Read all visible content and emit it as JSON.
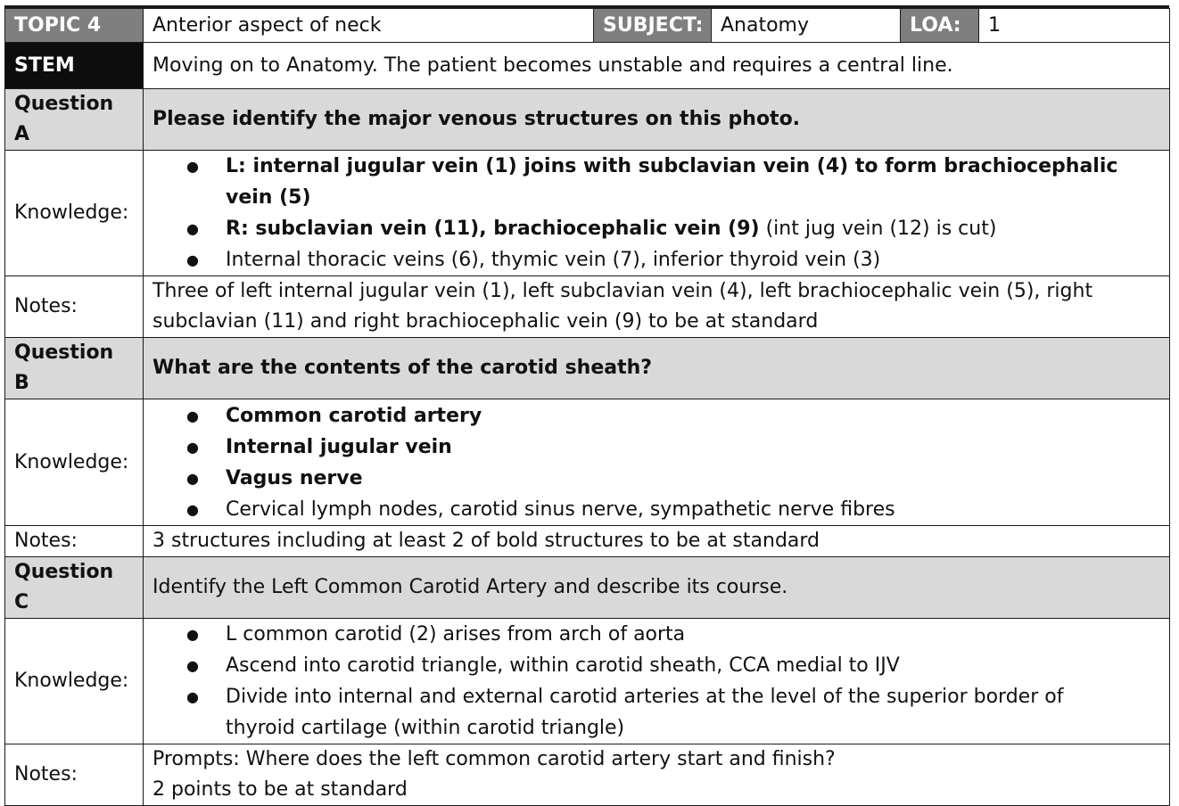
{
  "header": {
    "topic_label": "TOPIC 4",
    "topic_value": "Anterior aspect of neck",
    "subject_label": "SUBJECT:",
    "subject_value": "Anatomy",
    "loa_label": "LOA:",
    "loa_value": "1"
  },
  "stem": {
    "label": "STEM",
    "text": "Moving on to Anatomy. The patient becomes unstable and requires a central line."
  },
  "questions": [
    {
      "label": "Question A",
      "text": "Please identify the major venous structures on this photo.",
      "knowledge_label": "Knowledge:",
      "knowledge": [
        {
          "bold": "L: internal jugular vein (1) joins with subclavian vein (4) to form brachiocephalic vein (5)",
          "normal": ""
        },
        {
          "bold": "R: subclavian vein (11), brachiocephalic vein (9)",
          "normal": " (int jug vein (12) is cut)"
        },
        {
          "bold": "",
          "normal": "Internal thoracic veins (6), thymic vein (7), inferior thyroid vein (3)"
        }
      ],
      "notes_label": "Notes:",
      "notes": [
        "Three of left internal jugular vein (1), left subclavian vein (4), left brachiocephalic vein (5), right",
        "subclavian (11) and right brachiocephalic vein (9) to be at standard"
      ]
    },
    {
      "label": "Question B",
      "text": "What are the contents of the carotid sheath?",
      "knowledge_label": "Knowledge:",
      "knowledge": [
        {
          "bold": "Common carotid artery",
          "normal": ""
        },
        {
          "bold": "Internal jugular vein",
          "normal": ""
        },
        {
          "bold": "Vagus nerve",
          "normal": ""
        },
        {
          "bold": "",
          "normal": "Cervical lymph nodes, carotid sinus nerve, sympathetic nerve fibres"
        }
      ],
      "notes_label": "Notes:",
      "notes": [
        "3 structures including at least 2 of bold structures to be at standard"
      ]
    },
    {
      "label": "Question C",
      "text": "Identify the Left Common Carotid Artery and describe its course.",
      "knowledge_label": "Knowledge:",
      "knowledge": [
        {
          "bold": "",
          "normal": "L common carotid (2) arises from arch of aorta"
        },
        {
          "bold": "",
          "normal": "Ascend into carotid triangle, within carotid sheath, CCA medial to IJV"
        },
        {
          "bold": "",
          "normal": "Divide into internal and external carotid arteries at the level of the superior border of"
        },
        {
          "bold": "",
          "normal": "thyroid cartilage (within carotid triangle)"
        }
      ],
      "notes_label": "Notes:",
      "notes": [
        "Prompts: Where does the left common carotid artery start and finish?",
        "2 points to be at standard"
      ]
    }
  ]
}
